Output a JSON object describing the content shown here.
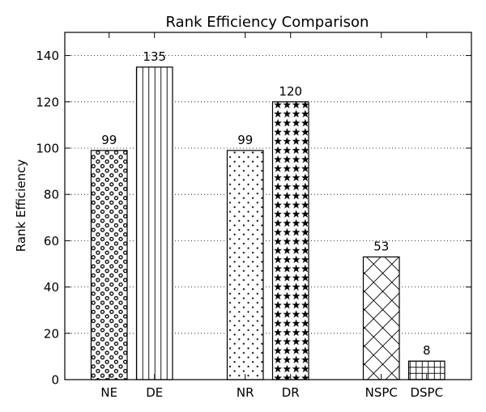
{
  "chart_data": {
    "type": "bar",
    "title": "Rank Efficiency Comparison",
    "xlabel": "",
    "ylabel": "Rank Efficiency",
    "ylim": [
      0,
      150
    ],
    "yticks": [
      0,
      20,
      40,
      60,
      80,
      100,
      120,
      140
    ],
    "grid": "horizontal-dotted",
    "categories": [
      "NE",
      "DE",
      "NR",
      "DR",
      "NSPC",
      "DSPC"
    ],
    "values": [
      99,
      135,
      99,
      120,
      53,
      8
    ],
    "value_labels": [
      "99",
      "135",
      "99",
      "120",
      "53",
      "8"
    ],
    "patterns": [
      "small-circles",
      "vertical-lines",
      "dots",
      "stars",
      "crosshatch-diagonal",
      "grid"
    ],
    "colors": {
      "bar_fill": "#ffffff",
      "edge": "#000000",
      "grid": "#000000"
    }
  }
}
